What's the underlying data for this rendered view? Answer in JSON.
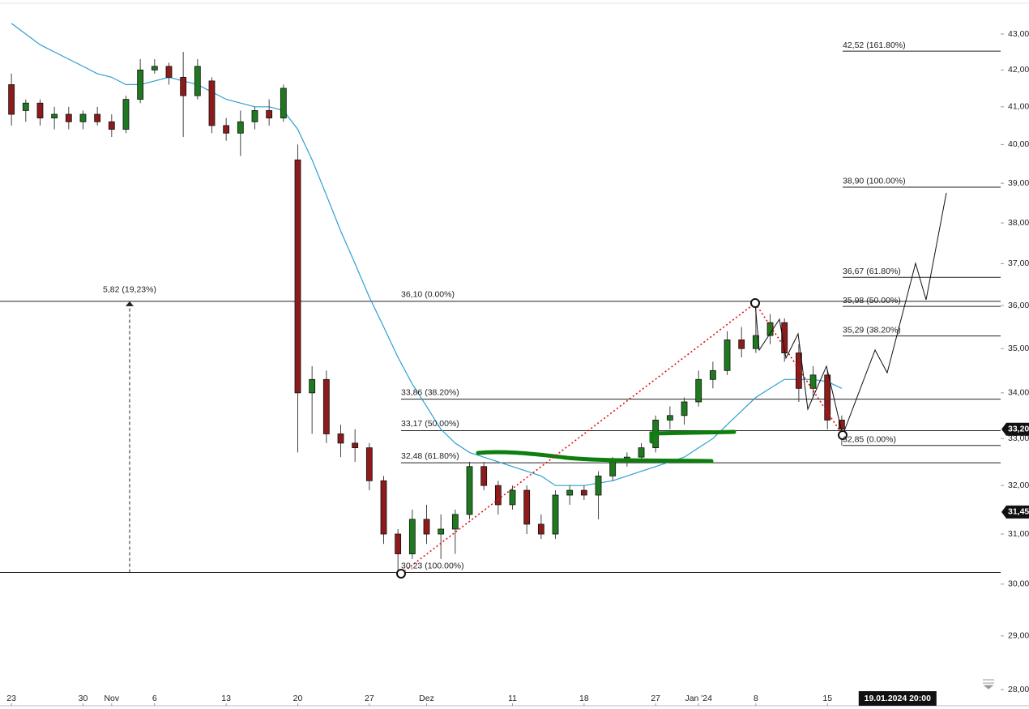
{
  "chart_data": {
    "type": "candlestick",
    "log": true,
    "x": [
      0,
      1,
      2,
      3,
      4,
      5,
      6,
      7,
      8,
      9,
      10,
      11,
      12,
      13,
      14,
      15,
      16,
      17,
      18,
      19,
      20,
      21,
      22,
      23,
      24,
      25,
      26,
      27,
      28,
      29,
      30,
      31,
      32,
      33,
      34,
      35,
      36,
      37,
      38,
      39,
      40,
      41,
      42,
      43,
      44,
      45,
      46,
      47,
      48,
      49,
      50,
      51,
      52,
      53,
      54,
      55,
      56,
      57,
      58
    ],
    "open": [
      41.6,
      40.9,
      41.1,
      40.7,
      40.8,
      40.6,
      40.8,
      40.6,
      40.4,
      41.2,
      42.0,
      42.1,
      41.8,
      41.3,
      41.7,
      40.5,
      40.3,
      40.6,
      40.9,
      40.7,
      39.6,
      34.0,
      34.3,
      33.1,
      32.9,
      32.8,
      32.1,
      31.0,
      30.6,
      31.3,
      31.0,
      31.1,
      31.4,
      32.4,
      32.0,
      31.6,
      31.9,
      31.2,
      31.0,
      31.8,
      31.9,
      31.8,
      32.2,
      32.5,
      32.6,
      32.8,
      33.4,
      33.5,
      33.8,
      34.3,
      34.5,
      35.2,
      35.0,
      35.3,
      35.6,
      34.9,
      34.1,
      34.4,
      33.4
    ],
    "high": [
      41.9,
      41.2,
      41.2,
      41.0,
      41.0,
      40.9,
      41.0,
      40.8,
      41.3,
      42.3,
      42.3,
      42.2,
      42.5,
      42.3,
      41.8,
      40.7,
      40.9,
      41.0,
      41.2,
      41.6,
      40.0,
      34.6,
      34.5,
      33.3,
      33.2,
      32.9,
      32.2,
      31.1,
      31.5,
      31.6,
      31.4,
      31.5,
      32.5,
      32.5,
      32.1,
      32.0,
      32.0,
      31.4,
      31.9,
      32.0,
      32.0,
      32.3,
      32.6,
      32.7,
      32.9,
      33.5,
      33.7,
      33.9,
      34.5,
      34.7,
      35.4,
      35.5,
      36.1,
      35.8,
      35.7,
      35.1,
      34.6,
      34.5,
      33.5
    ],
    "low": [
      40.5,
      40.6,
      40.5,
      40.4,
      40.4,
      40.4,
      40.5,
      40.2,
      40.3,
      41.1,
      41.9,
      41.6,
      40.2,
      41.2,
      40.3,
      40.1,
      39.7,
      40.4,
      40.5,
      40.6,
      32.7,
      33.1,
      32.9,
      32.6,
      32.5,
      31.9,
      30.8,
      30.23,
      30.5,
      30.8,
      30.5,
      30.6,
      31.3,
      31.9,
      31.4,
      31.5,
      31.0,
      30.9,
      30.9,
      31.6,
      31.7,
      31.3,
      32.1,
      32.4,
      32.5,
      32.7,
      33.2,
      33.3,
      33.7,
      34.1,
      34.4,
      34.8,
      34.9,
      35.1,
      34.7,
      33.8,
      33.9,
      33.2,
      32.85
    ],
    "close": [
      40.8,
      41.1,
      40.7,
      40.8,
      40.6,
      40.8,
      40.6,
      40.4,
      41.2,
      42.0,
      42.1,
      41.8,
      41.3,
      42.1,
      40.5,
      40.3,
      40.6,
      40.9,
      40.7,
      41.5,
      34.0,
      34.3,
      33.1,
      32.9,
      32.8,
      32.1,
      31.0,
      30.6,
      31.3,
      31.0,
      31.1,
      31.4,
      32.4,
      32.0,
      31.6,
      31.9,
      31.2,
      31.0,
      31.8,
      31.9,
      31.8,
      32.2,
      32.5,
      32.6,
      32.8,
      33.4,
      33.5,
      33.8,
      34.3,
      34.5,
      35.2,
      35.0,
      35.3,
      35.6,
      34.9,
      34.1,
      34.4,
      33.4,
      33.2
    ],
    "up_color": "#1f7a1f",
    "down_color": "#8e1b1b",
    "ma": {
      "color": "#2e9fd1",
      "values": [
        43.3,
        43.0,
        42.7,
        42.5,
        42.3,
        42.1,
        41.9,
        41.8,
        41.6,
        41.6,
        41.7,
        41.8,
        41.7,
        41.6,
        41.4,
        41.2,
        41.1,
        41.0,
        41.0,
        40.9,
        40.4,
        39.6,
        38.7,
        37.8,
        37.0,
        36.2,
        35.5,
        34.8,
        34.2,
        33.7,
        33.2,
        32.9,
        32.7,
        32.6,
        32.5,
        32.4,
        32.3,
        32.2,
        32.0,
        32.0,
        32.0,
        32.05,
        32.1,
        32.2,
        32.3,
        32.4,
        32.5,
        32.6,
        32.8,
        33.0,
        33.3,
        33.6,
        33.9,
        34.1,
        34.3,
        34.3,
        34.3,
        34.25,
        34.1
      ]
    },
    "xlim": [
      -0.8,
      69.1
    ],
    "xticks": [
      {
        "value": 0,
        "label": "23"
      },
      {
        "value": 5,
        "label": "30"
      },
      {
        "value": 7,
        "label": "Nov"
      },
      {
        "value": 10,
        "label": "6"
      },
      {
        "value": 15,
        "label": "13"
      },
      {
        "value": 20,
        "label": "20"
      },
      {
        "value": 25,
        "label": "27"
      },
      {
        "value": 29,
        "label": "Dez"
      },
      {
        "value": 35,
        "label": "11"
      },
      {
        "value": 40,
        "label": "18"
      },
      {
        "value": 45,
        "label": "27"
      },
      {
        "value": 48,
        "label": "Jan '24"
      },
      {
        "value": 52,
        "label": "8"
      },
      {
        "value": 57,
        "label": "15"
      }
    ],
    "ylim": [
      28,
      43
    ],
    "yticks": [
      {
        "value": 43,
        "label": "43,00"
      },
      {
        "value": 42,
        "label": "42,00"
      },
      {
        "value": 41,
        "label": "41,00"
      },
      {
        "value": 40,
        "label": "40,00"
      },
      {
        "value": 39,
        "label": "39,00"
      },
      {
        "value": 38,
        "label": "38,00"
      },
      {
        "value": 37,
        "label": "37,00"
      },
      {
        "value": 36,
        "label": "36,00"
      },
      {
        "value": 35,
        "label": "35,00"
      },
      {
        "value": 34,
        "label": "34,00"
      },
      {
        "value": 33,
        "label": "33,00"
      },
      {
        "value": 32,
        "label": "32,00"
      },
      {
        "value": 31,
        "label": "31,00"
      },
      {
        "value": 30,
        "label": "30,00"
      },
      {
        "value": 29,
        "label": "29,00"
      },
      {
        "value": 28,
        "label": "28,00"
      }
    ],
    "fib_left": [
      {
        "value": 36.1,
        "label": "36,10 (0.00%)"
      },
      {
        "value": 33.86,
        "label": "33,86 (38.20%)"
      },
      {
        "value": 33.17,
        "label": "33,17 (50.00%)"
      },
      {
        "value": 32.48,
        "label": "32,48 (61.80%)"
      },
      {
        "value": 30.23,
        "label": "30,23 (100.00%)"
      }
    ],
    "fib_right": [
      {
        "value": 42.52,
        "label": "42,52 (161.80%)"
      },
      {
        "value": 38.9,
        "label": "38,90 (100.00%)"
      },
      {
        "value": 36.67,
        "label": "36,67 (61.80%)"
      },
      {
        "value": 35.98,
        "label": "35,98 (50.00%)"
      },
      {
        "value": 35.29,
        "label": "35,29 (38.20%)"
      },
      {
        "value": 32.85,
        "label": "32,85 (0.00%)"
      }
    ],
    "measurement": {
      "label": "5,82 (19,23%)"
    },
    "price_tags": [
      {
        "value": 33.2,
        "label": "33,20"
      },
      {
        "value": 31.45,
        "label": "31,45"
      }
    ],
    "cursor": {
      "x": 61.9,
      "label": "19.01.2024 20:00"
    }
  }
}
